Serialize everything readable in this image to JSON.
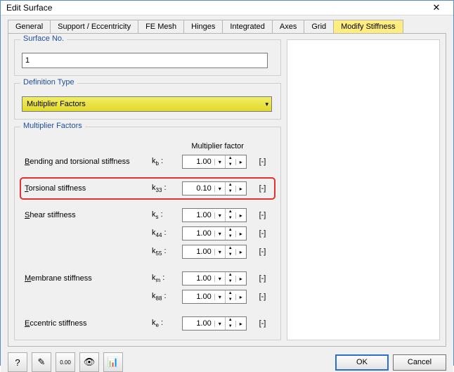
{
  "window": {
    "title": "Edit Surface"
  },
  "tabs": [
    {
      "label": "General"
    },
    {
      "label": "Support / Eccentricity"
    },
    {
      "label": "FE Mesh"
    },
    {
      "label": "Hinges"
    },
    {
      "label": "Integrated"
    },
    {
      "label": "Axes"
    },
    {
      "label": "Grid"
    },
    {
      "label": "Modify Stiffness",
      "active": true
    }
  ],
  "surface_no": {
    "legend": "Surface No.",
    "value": "1"
  },
  "definition_type": {
    "legend": "Definition Type",
    "value": "Multiplier Factors"
  },
  "multiplier_factors": {
    "legend": "Multiplier Factors",
    "header": "Multiplier factor",
    "rows": [
      {
        "label": "Bending and torsional stiffness",
        "ul": "B",
        "sym": "kb",
        "value": "1.00",
        "unit": "[-]"
      },
      {
        "label": "Torsional stiffness",
        "ul": "T",
        "sym": "k33",
        "value": "0.10",
        "unit": "[-]",
        "highlight": true
      },
      {
        "label": "Shear stiffness",
        "ul": "S",
        "sym": "ks",
        "value": "1.00",
        "unit": "[-]"
      },
      {
        "label": "",
        "sym": "k44",
        "value": "1.00",
        "unit": "[-]"
      },
      {
        "label": "",
        "sym": "k55",
        "value": "1.00",
        "unit": "[-]"
      },
      {
        "label": "Membrane stiffness",
        "ul": "M",
        "sym": "km",
        "value": "1.00",
        "unit": "[-]"
      },
      {
        "label": "",
        "sym": "k88",
        "value": "1.00",
        "unit": "[-]"
      },
      {
        "label": "Eccentric stiffness",
        "ul": "E",
        "sym": "ke",
        "value": "1.00",
        "unit": "[-]"
      }
    ]
  },
  "footer": {
    "icons": [
      "help-icon",
      "edit-icon",
      "value-icon",
      "eye-icon",
      "chart-icon"
    ],
    "ok": "OK",
    "cancel": "Cancel"
  },
  "colors": {
    "active_tab_bg": "#ffed7f",
    "combo_bg": "#e9e23e",
    "highlight_border": "#e53030",
    "legend_text": "#1e4e9c"
  }
}
